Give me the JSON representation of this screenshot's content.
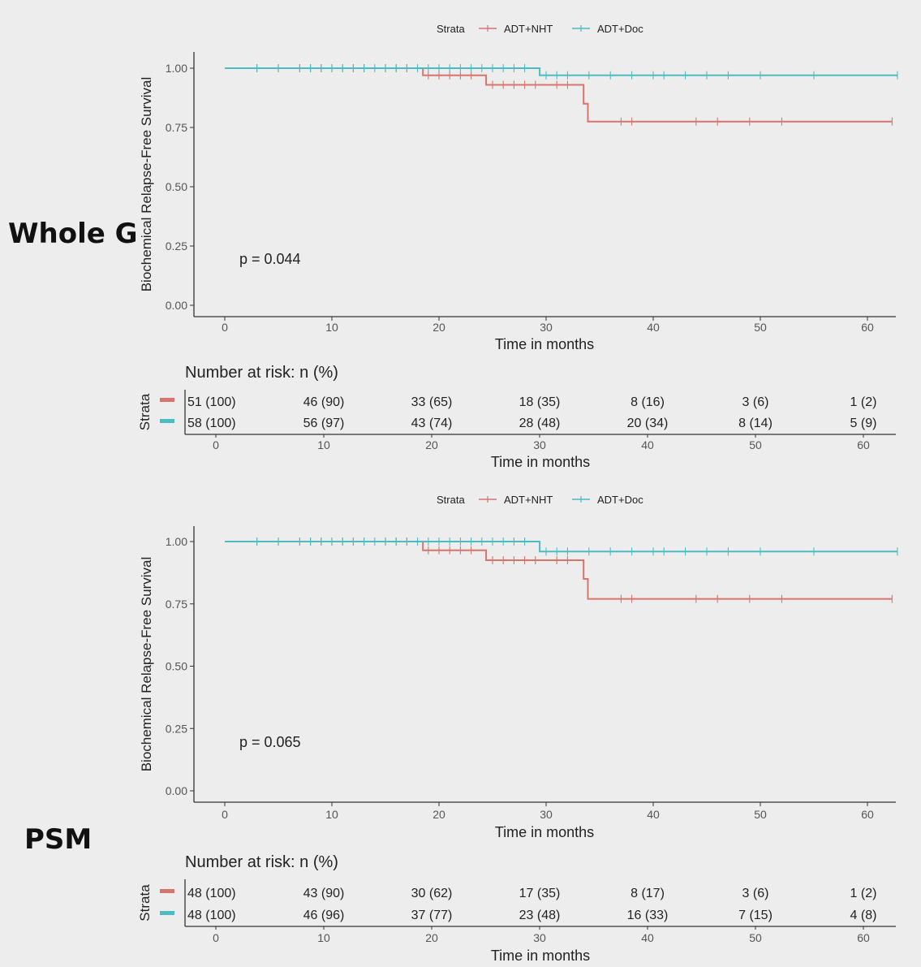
{
  "colors": {
    "nht": "#d7756c",
    "doc": "#4dbcc0",
    "axis": "#333333",
    "text": "#222222",
    "tick": "#555555"
  },
  "legend": {
    "title": "Strata",
    "items": [
      "ADT+NHT",
      "ADT+Doc"
    ]
  },
  "risk_table": {
    "title": "Number at risk: n (%)",
    "ylabel": "Strata"
  },
  "panels": [
    {
      "label": "Whole G",
      "p_value": "p = 0.044"
    },
    {
      "label": "PSM",
      "p_value": "p = 0.065"
    }
  ],
  "chart_data": [
    {
      "type": "line",
      "step": true,
      "xlabel": "Time in months",
      "ylabel": "Biochemical Relapse-Free Survival",
      "xlim": [
        -3,
        63
      ],
      "ylim": [
        0,
        1
      ],
      "xticks": [
        0,
        10,
        20,
        30,
        40,
        50,
        60
      ],
      "yticks": [
        "0.00",
        "0.25",
        "0.50",
        "0.75",
        "1.00"
      ],
      "grid": false,
      "legend_position": "top",
      "series": [
        {
          "name": "ADT+NHT",
          "steps": [
            [
              0,
              1.0
            ],
            [
              18.5,
              0.97
            ],
            [
              24.4,
              0.93
            ],
            [
              33.5,
              0.85
            ],
            [
              33.9,
              0.775
            ],
            [
              62.3,
              0.775
            ]
          ],
          "censor_times": [
            3,
            5,
            7,
            8,
            9,
            10,
            11,
            12,
            13,
            15,
            16,
            17,
            19,
            20,
            21,
            22,
            23,
            25,
            26,
            27,
            28,
            29,
            31,
            32,
            37,
            38,
            44,
            46,
            49,
            52,
            62.3
          ]
        },
        {
          "name": "ADT+Doc",
          "steps": [
            [
              0,
              1.0
            ],
            [
              29.4,
              0.97
            ],
            [
              62.8,
              0.97
            ]
          ],
          "censor_times": [
            3,
            5,
            7,
            8,
            9,
            10,
            11,
            12,
            13,
            14,
            15,
            16,
            17,
            18,
            19,
            20,
            21,
            22,
            23,
            24,
            25,
            26,
            27,
            28,
            30,
            31,
            32,
            34,
            36,
            38,
            40,
            41,
            43,
            45,
            47,
            50,
            55,
            62.8
          ]
        }
      ],
      "risk_table": {
        "times": [
          0,
          10,
          20,
          30,
          40,
          50,
          60
        ],
        "rows": [
          {
            "name": "ADT+NHT",
            "values": [
              "51 (100)",
              "46 (90)",
              "33 (65)",
              "18 (35)",
              "8 (16)",
              "3 (6)",
              "1 (2)"
            ]
          },
          {
            "name": "ADT+Doc",
            "values": [
              "58 (100)",
              "56 (97)",
              "43 (74)",
              "28 (48)",
              "20 (34)",
              "8 (14)",
              "5 (9)"
            ]
          }
        ]
      }
    },
    {
      "type": "line",
      "step": true,
      "xlabel": "Time in months",
      "ylabel": "Biochemical Relapse-Free Survival",
      "xlim": [
        -3,
        63
      ],
      "ylim": [
        0,
        1
      ],
      "xticks": [
        0,
        10,
        20,
        30,
        40,
        50,
        60
      ],
      "yticks": [
        "0.00",
        "0.25",
        "0.50",
        "0.75",
        "1.00"
      ],
      "grid": false,
      "legend_position": "top",
      "series": [
        {
          "name": "ADT+NHT",
          "steps": [
            [
              0,
              1.0
            ],
            [
              18.5,
              0.965
            ],
            [
              24.4,
              0.925
            ],
            [
              33.5,
              0.85
            ],
            [
              33.9,
              0.77
            ],
            [
              62.3,
              0.77
            ]
          ],
          "censor_times": [
            3,
            5,
            7,
            8,
            9,
            10,
            11,
            12,
            13,
            15,
            16,
            17,
            19,
            20,
            21,
            22,
            23,
            25,
            26,
            27,
            28,
            29,
            31,
            32,
            37,
            38,
            44,
            46,
            49,
            52,
            62.3
          ]
        },
        {
          "name": "ADT+Doc",
          "steps": [
            [
              0,
              1.0
            ],
            [
              29.4,
              0.96
            ],
            [
              62.8,
              0.96
            ]
          ],
          "censor_times": [
            3,
            5,
            7,
            8,
            9,
            10,
            11,
            12,
            13,
            14,
            15,
            16,
            17,
            18,
            19,
            20,
            21,
            22,
            23,
            24,
            25,
            26,
            27,
            28,
            30,
            31,
            32,
            34,
            36,
            38,
            40,
            41,
            43,
            45,
            47,
            50,
            55,
            62.8
          ]
        }
      ],
      "risk_table": {
        "times": [
          0,
          10,
          20,
          30,
          40,
          50,
          60
        ],
        "rows": [
          {
            "name": "ADT+NHT",
            "values": [
              "48 (100)",
              "43 (90)",
              "30 (62)",
              "17 (35)",
              "8 (17)",
              "3 (6)",
              "1 (2)"
            ]
          },
          {
            "name": "ADT+Doc",
            "values": [
              "48 (100)",
              "46 (96)",
              "37 (77)",
              "23 (48)",
              "16 (33)",
              "7 (15)",
              "4 (8)"
            ]
          }
        ]
      }
    }
  ]
}
